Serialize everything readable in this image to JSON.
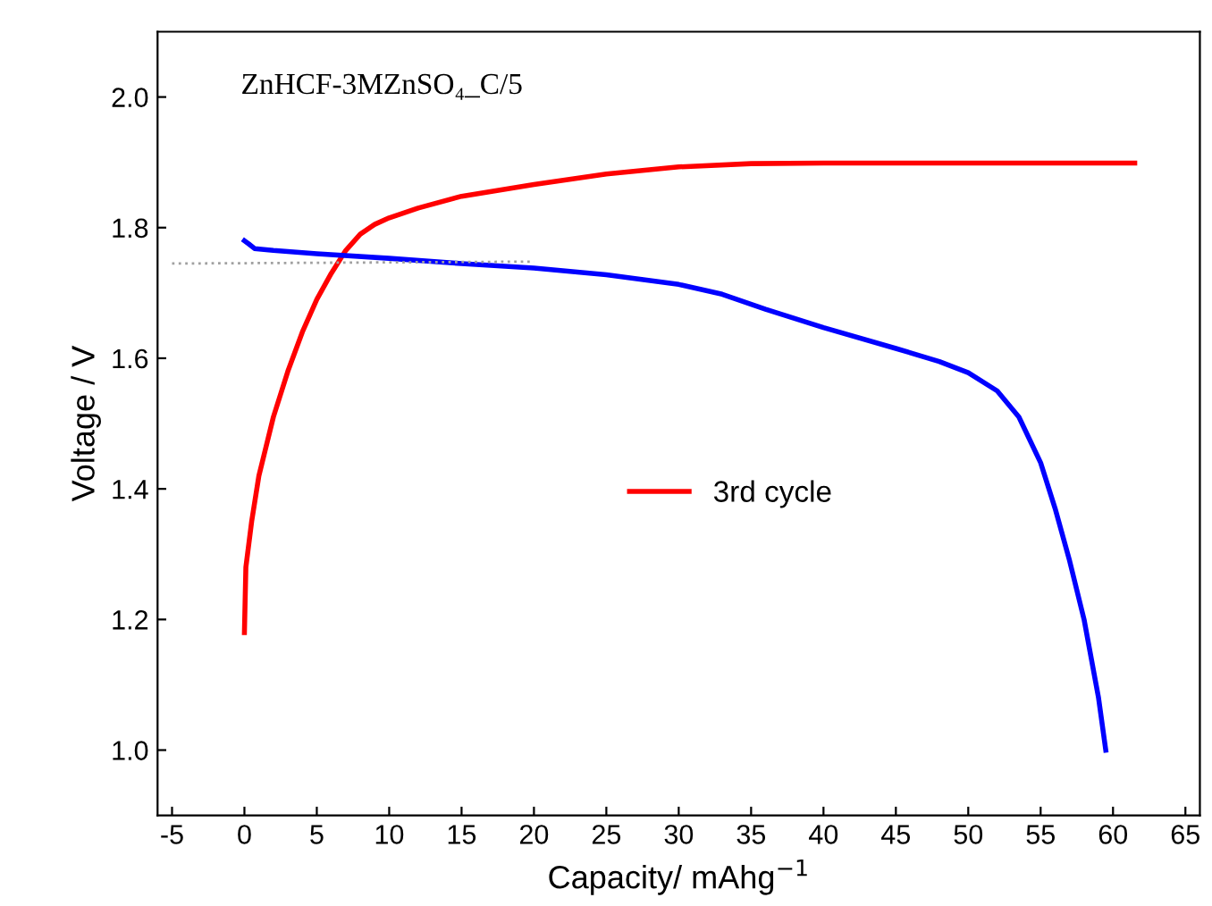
{
  "chart_data": {
    "type": "line",
    "title": "ZnHCF-3MZnSO₄_C/5",
    "xlabel": "Capacity/ mAhg$^{−1}$",
    "ylabel": "Voltage / V",
    "xlim": [
      -6,
      66
    ],
    "ylim": [
      0.9,
      2.1
    ],
    "xticks": [
      -5,
      0,
      5,
      10,
      15,
      20,
      25,
      30,
      35,
      40,
      45,
      50,
      55,
      60,
      65
    ],
    "yticks": [
      {
        "value": 1.0,
        "label": "1.0"
      },
      1.2,
      1.4,
      1.6,
      1.8,
      {
        "value": 2.0,
        "label": "2.0"
      }
    ],
    "grid": false,
    "legend": "center",
    "marker": "none",
    "series": [
      {
        "name": "3rd cycle",
        "color": "#ff0000",
        "line_style": "solid",
        "x": [
          0,
          0.1,
          0.5,
          1,
          2,
          3,
          4,
          5,
          6,
          7,
          8,
          9,
          10,
          12,
          15,
          20,
          25,
          30,
          35,
          40,
          50,
          61.5
        ],
        "values": [
          1.18,
          1.28,
          1.35,
          1.42,
          1.51,
          1.58,
          1.64,
          1.69,
          1.73,
          1.765,
          1.79,
          1.805,
          1.815,
          1.83,
          1.848,
          1.866,
          1.882,
          1.893,
          1.898,
          1.899,
          1.899,
          1.899
        ]
      },
      {
        "color": "#0000ff",
        "line_style": "solid",
        "x": [
          0,
          0.3,
          0.7,
          2,
          5,
          10,
          15,
          20,
          25,
          30,
          33,
          36,
          40,
          45,
          48,
          50,
          52,
          53.5,
          55,
          56,
          57,
          58,
          59,
          59.5
        ],
        "values": [
          1.78,
          1.775,
          1.768,
          1.765,
          1.76,
          1.753,
          1.745,
          1.738,
          1.728,
          1.713,
          1.698,
          1.675,
          1.647,
          1.615,
          1.595,
          1.578,
          1.55,
          1.51,
          1.44,
          1.37,
          1.29,
          1.2,
          1.08,
          1.0
        ]
      },
      {
        "color": "#a0a0a0",
        "line_style": "dotted",
        "x": [
          -5,
          20
        ],
        "values": [
          1.745,
          1.748
        ]
      }
    ]
  }
}
